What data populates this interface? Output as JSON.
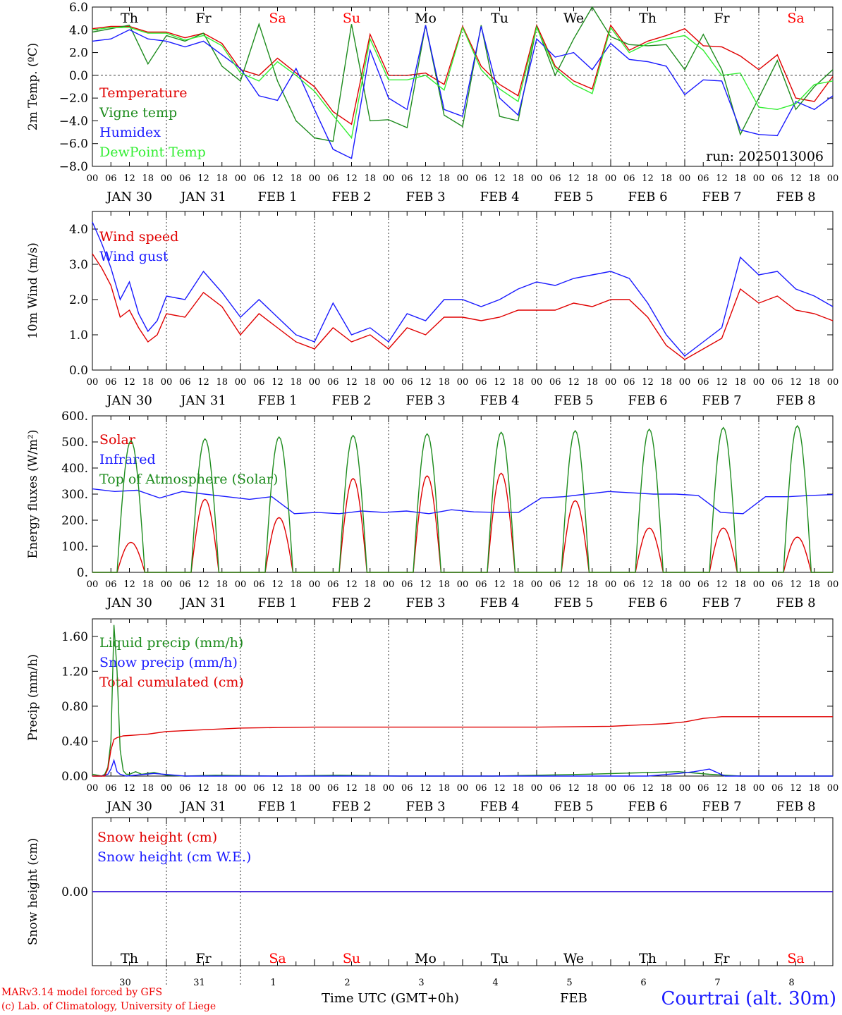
{
  "chart_data": [
    {
      "type": "line",
      "ylabel": "2m Temp. (ºC)",
      "ylim": [
        -8,
        6
      ],
      "yticks": [
        "6.0",
        "4.0",
        "2.0",
        "0.0",
        "−2.0",
        "−4.0",
        "−6.0",
        "−8.0"
      ],
      "zero_line": true,
      "run_label": "run: 2025013006",
      "day_labels": [
        "Th",
        "Fr",
        "Sa",
        "Su",
        "Mo",
        "Tu",
        "We",
        "Th",
        "Fr",
        "Sa"
      ],
      "day_label_colors": [
        "#000000",
        "#000000",
        "#ff0000",
        "#ff0000",
        "#000000",
        "#000000",
        "#000000",
        "#000000",
        "#000000",
        "#ff0000"
      ],
      "x_hours": [
        0,
        6,
        12,
        18,
        24,
        30,
        36,
        42,
        48,
        54,
        60,
        66,
        72,
        78,
        84,
        90,
        96,
        102,
        108,
        114,
        120,
        126,
        132,
        138,
        144,
        150,
        156,
        162,
        168,
        174,
        180,
        186,
        192,
        198,
        204,
        210,
        216,
        222,
        228,
        234,
        240
      ],
      "series": [
        {
          "name": "Temperature",
          "color": "#e00000",
          "values": [
            4.1,
            4.3,
            4.3,
            3.8,
            3.8,
            3.3,
            3.7,
            2.8,
            0.5,
            0.0,
            1.5,
            0.2,
            -1.0,
            -3.2,
            -4.3,
            3.6,
            0.0,
            0.0,
            0.2,
            -0.8,
            4.3,
            0.8,
            -0.8,
            -1.8,
            4.4,
            0.8,
            -0.5,
            -1.2,
            4.4,
            2.2,
            3.0,
            3.5,
            4.1,
            2.6,
            2.5,
            1.7,
            0.5,
            1.8,
            -2.0,
            -2.3,
            -0.1
          ]
        },
        {
          "name": "Vigne temp",
          "color": "#1e8c1e",
          "values": [
            3.8,
            4.1,
            4.4,
            1.0,
            3.5,
            3.0,
            3.7,
            0.8,
            -0.5,
            4.5,
            -0.5,
            -4.0,
            -5.5,
            -5.8,
            4.5,
            -4.0,
            -3.9,
            -4.6,
            4.4,
            -3.5,
            -4.5,
            4.4,
            -3.6,
            -4.0,
            4.3,
            0.0,
            3.2,
            6.0,
            3.4,
            2.7,
            2.6,
            2.7,
            0.5,
            3.6,
            0.5,
            -5.2,
            -2.0,
            1.3,
            -3.0,
            -1.0,
            0.5
          ]
        },
        {
          "name": "Humidex",
          "color": "#1a1aff",
          "values": [
            3.0,
            3.2,
            4.0,
            3.2,
            3.0,
            2.5,
            3.0,
            1.8,
            0.6,
            -1.8,
            -2.2,
            0.6,
            -3.0,
            -6.5,
            -7.3,
            2.2,
            -2.0,
            -3.0,
            4.4,
            -3.0,
            -3.6,
            4.3,
            -2.0,
            -3.5,
            3.2,
            1.6,
            2.0,
            0.5,
            2.8,
            1.4,
            1.2,
            0.8,
            -1.7,
            -0.4,
            -0.5,
            -4.8,
            -5.2,
            -5.3,
            -2.3,
            -3.0,
            -1.8
          ]
        },
        {
          "name": "DewPoint Temp",
          "color": "#33ee33",
          "values": [
            4.0,
            4.2,
            4.2,
            3.7,
            3.7,
            3.1,
            3.5,
            2.6,
            0.2,
            -0.5,
            1.2,
            0.0,
            -1.4,
            -3.5,
            -5.5,
            3.2,
            -0.4,
            -0.4,
            0.0,
            -1.3,
            4.2,
            0.5,
            -1.2,
            -2.3,
            4.2,
            0.6,
            -0.8,
            -1.6,
            4.2,
            2.0,
            2.8,
            3.2,
            3.5,
            2.2,
            0.0,
            0.2,
            -2.8,
            -3.0,
            -2.5,
            -0.8,
            -0.5
          ]
        }
      ]
    },
    {
      "type": "line",
      "ylabel": "10m Wind (m/s)",
      "ylim": [
        0,
        4.5
      ],
      "yticks": [
        "4.0",
        "3.0",
        "2.0",
        "1.0",
        "0.0"
      ],
      "x_hours": [
        0,
        3,
        6,
        9,
        12,
        15,
        18,
        21,
        24,
        30,
        36,
        42,
        48,
        54,
        60,
        66,
        72,
        78,
        84,
        90,
        96,
        102,
        108,
        114,
        120,
        126,
        132,
        138,
        144,
        150,
        156,
        162,
        168,
        174,
        180,
        186,
        192,
        198,
        204,
        210,
        216,
        222,
        228,
        234,
        240
      ],
      "series": [
        {
          "name": "Wind speed",
          "color": "#e00000",
          "values": [
            3.3,
            2.9,
            2.4,
            1.5,
            1.7,
            1.2,
            0.8,
            1.0,
            1.6,
            1.5,
            2.2,
            1.8,
            1.0,
            1.6,
            1.2,
            0.8,
            0.6,
            1.2,
            0.8,
            1.0,
            0.6,
            1.2,
            1.0,
            1.5,
            1.5,
            1.4,
            1.5,
            1.7,
            1.7,
            1.7,
            1.9,
            1.8,
            2.0,
            2.0,
            1.5,
            0.7,
            0.3,
            0.6,
            0.9,
            2.3,
            1.9,
            2.1,
            1.7,
            1.6,
            1.4
          ]
        },
        {
          "name": "Wind gust",
          "color": "#1a1aff",
          "values": [
            4.2,
            3.6,
            2.9,
            2.0,
            2.5,
            1.6,
            1.1,
            1.4,
            2.1,
            2.0,
            2.8,
            2.2,
            1.5,
            2.0,
            1.5,
            1.0,
            0.8,
            1.9,
            1.0,
            1.2,
            0.8,
            1.6,
            1.4,
            2.0,
            2.0,
            1.8,
            2.0,
            2.3,
            2.5,
            2.4,
            2.6,
            2.7,
            2.8,
            2.6,
            1.9,
            1.0,
            0.4,
            0.8,
            1.2,
            3.2,
            2.7,
            2.8,
            2.3,
            2.1,
            1.8
          ]
        }
      ]
    },
    {
      "type": "line",
      "ylabel": "Energy fluxes (W/m²)",
      "ylim": [
        0,
        600
      ],
      "yticks": [
        "600.",
        "500.",
        "400.",
        "300.",
        "200.",
        "100.",
        "0."
      ],
      "series": [
        {
          "name": "Solar",
          "color": "#e00000",
          "peaks": [
            {
              "day": 0,
              "value": 115
            },
            {
              "day": 1,
              "value": 280
            },
            {
              "day": 2,
              "value": 210
            },
            {
              "day": 3,
              "value": 360
            },
            {
              "day": 4,
              "value": 370
            },
            {
              "day": 5,
              "value": 380
            },
            {
              "day": 6,
              "value": 275
            },
            {
              "day": 7,
              "value": 170
            },
            {
              "day": 8,
              "value": 170
            },
            {
              "day": 9,
              "value": 135
            }
          ]
        },
        {
          "name": "Infrared",
          "color": "#1a1aff",
          "values": [
            320,
            310,
            315,
            285,
            310,
            300,
            290,
            280,
            290,
            225,
            230,
            225,
            235,
            230,
            235,
            225,
            240,
            232,
            230,
            230,
            285,
            290,
            300,
            310,
            305,
            300,
            300,
            295,
            230,
            225,
            290,
            290,
            295,
            298
          ]
        },
        {
          "name": "Top of Atmosphere (Solar)",
          "color": "#1e8c1e",
          "peaks": [
            {
              "day": 0,
              "value": 505
            },
            {
              "day": 1,
              "value": 512
            },
            {
              "day": 2,
              "value": 519
            },
            {
              "day": 3,
              "value": 525
            },
            {
              "day": 4,
              "value": 531
            },
            {
              "day": 5,
              "value": 537
            },
            {
              "day": 6,
              "value": 543
            },
            {
              "day": 7,
              "value": 549
            },
            {
              "day": 8,
              "value": 555
            },
            {
              "day": 9,
              "value": 562
            }
          ]
        }
      ]
    },
    {
      "type": "line",
      "ylabel": "Precip (mm/h)",
      "ylim": [
        0,
        1.8
      ],
      "yticks": [
        "1.60",
        "1.20",
        "0.80",
        "0.40",
        "0.00"
      ],
      "series": [
        {
          "name": "Liquid precip (mm/h)",
          "color": "#1e8c1e",
          "x_hours": [
            0,
            3,
            4,
            5,
            6,
            7,
            8,
            9,
            10,
            11,
            12,
            14,
            16,
            20,
            24,
            30,
            40,
            60,
            80,
            100,
            130,
            160,
            190,
            200,
            210,
            240
          ],
          "values": [
            0.02,
            0.0,
            0.02,
            0.1,
            0.4,
            1.73,
            1.2,
            0.3,
            0.06,
            0.02,
            0.02,
            0.05,
            0.02,
            0.04,
            0.01,
            0.0,
            0.01,
            0.0,
            0.01,
            0.0,
            0.0,
            0.02,
            0.05,
            0.02,
            0.0,
            0.0
          ]
        },
        {
          "name": "Snow precip (mm/h)",
          "color": "#1a1aff",
          "x_hours": [
            0,
            3,
            5,
            6,
            7,
            8,
            9,
            11,
            20,
            30,
            60,
            100,
            180,
            190,
            195,
            200,
            205,
            240
          ],
          "values": [
            0.0,
            0.0,
            0.02,
            0.08,
            0.18,
            0.05,
            0.02,
            0.0,
            0.03,
            0.0,
            0.0,
            0.0,
            0.0,
            0.03,
            0.05,
            0.08,
            0.0,
            0.0
          ]
        },
        {
          "name": "Total cumulated (cm)",
          "color": "#e00000",
          "x_hours": [
            0,
            4,
            5,
            6,
            7,
            8,
            10,
            14,
            18,
            24,
            30,
            36,
            48,
            60,
            72,
            96,
            120,
            144,
            168,
            180,
            186,
            192,
            198,
            204,
            216,
            240
          ],
          "values": [
            0.0,
            0.0,
            0.08,
            0.3,
            0.42,
            0.44,
            0.46,
            0.47,
            0.48,
            0.51,
            0.52,
            0.53,
            0.55,
            0.555,
            0.56,
            0.56,
            0.56,
            0.56,
            0.57,
            0.59,
            0.6,
            0.62,
            0.66,
            0.68,
            0.68,
            0.68
          ]
        }
      ]
    },
    {
      "type": "line",
      "ylabel": "Snow height (cm)",
      "yticks": [
        "0.00"
      ],
      "series": [
        {
          "name": "Snow height (cm)",
          "color": "#e00000",
          "values": [
            0,
            0
          ]
        },
        {
          "name": "Snow height (cm W.E.)",
          "color": "#1a1aff",
          "values": [
            0,
            0
          ]
        }
      ]
    }
  ],
  "x_axis": {
    "hour_labels": [
      "00",
      "06",
      "12",
      "18"
    ],
    "date_labels": [
      "JAN 30",
      "JAN 31",
      "FEB  1",
      "FEB  2",
      "FEB  3",
      "FEB  4",
      "FEB  5",
      "FEB  6",
      "FEB  7",
      "FEB  8"
    ],
    "bottom_day_numbers": [
      "30",
      "31",
      "1",
      "2",
      "3",
      "4",
      "5",
      "6",
      "7",
      "8"
    ],
    "month_label": "FEB",
    "title": "Time UTC (GMT+0h)"
  },
  "footer": {
    "credit_line1": "MARv3.14 model forced by GFS",
    "credit_line2": "(c) Lab. of Climatology, University of Liege",
    "station": "Courtrai (alt. 30m)"
  }
}
